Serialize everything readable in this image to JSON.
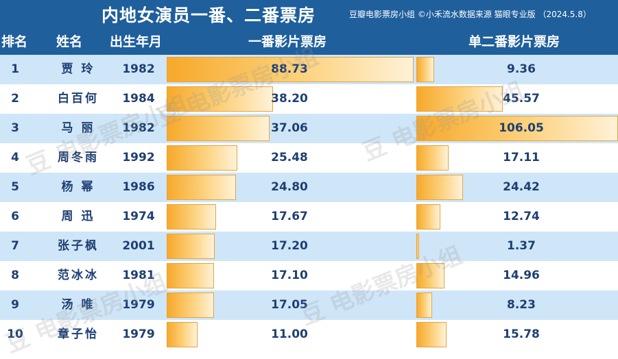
{
  "header": {
    "title": "内地女演员一番、二番票房",
    "subtitle": "豆瓣电影票房小组 ©小禾流水数据来源 猫眼专业版 （2024.5.8）",
    "col_rank": "排名",
    "col_name": "姓名",
    "col_birth": "出生年月",
    "col_lead": "一番影片票房",
    "col_second": "单二番影片票房"
  },
  "watermark": "豆 电影票房小组",
  "colors": {
    "header_bg": "#1f5f9c",
    "row_alt": "#cfe6f8",
    "bar_start": "#f7a92a",
    "bar_end": "#fff2d8",
    "text": "#1e3f73"
  },
  "chart_data": {
    "type": "table",
    "columns": [
      "排名",
      "姓名",
      "出生年月",
      "一番影片票房",
      "单二番影片票房"
    ],
    "rows": [
      {
        "rank": "1",
        "name": "贾 玲",
        "birth": "1982",
        "lead": 88.73,
        "lead_label": "88.73",
        "second": 9.36,
        "second_label": "9.36"
      },
      {
        "rank": "2",
        "name": "白百何",
        "birth": "1984",
        "lead": 38.2,
        "lead_label": "38.20",
        "second": 45.57,
        "second_label": "45.57"
      },
      {
        "rank": "3",
        "name": "马 丽",
        "birth": "1982",
        "lead": 37.06,
        "lead_label": "37.06",
        "second": 106.05,
        "second_label": "106.05"
      },
      {
        "rank": "4",
        "name": "周冬雨",
        "birth": "1992",
        "lead": 25.48,
        "lead_label": "25.48",
        "second": 17.11,
        "second_label": "17.11"
      },
      {
        "rank": "5",
        "name": "杨 幂",
        "birth": "1986",
        "lead": 24.8,
        "lead_label": "24.80",
        "second": 24.42,
        "second_label": "24.42"
      },
      {
        "rank": "6",
        "name": "周 迅",
        "birth": "1974",
        "lead": 17.67,
        "lead_label": "17.67",
        "second": 12.74,
        "second_label": "12.74"
      },
      {
        "rank": "7",
        "name": "张子枫",
        "birth": "2001",
        "lead": 17.2,
        "lead_label": "17.20",
        "second": 1.37,
        "second_label": "1.37"
      },
      {
        "rank": "8",
        "name": "范冰冰",
        "birth": "1981",
        "lead": 17.1,
        "lead_label": "17.10",
        "second": 14.96,
        "second_label": "14.96"
      },
      {
        "rank": "9",
        "name": "汤 唯",
        "birth": "1979",
        "lead": 17.05,
        "lead_label": "17.05",
        "second": 8.23,
        "second_label": "8.23"
      },
      {
        "rank": "10",
        "name": "章子怡",
        "birth": "1979",
        "lead": 11.0,
        "lead_label": "11.00",
        "second": 15.78,
        "second_label": "15.78"
      }
    ]
  }
}
